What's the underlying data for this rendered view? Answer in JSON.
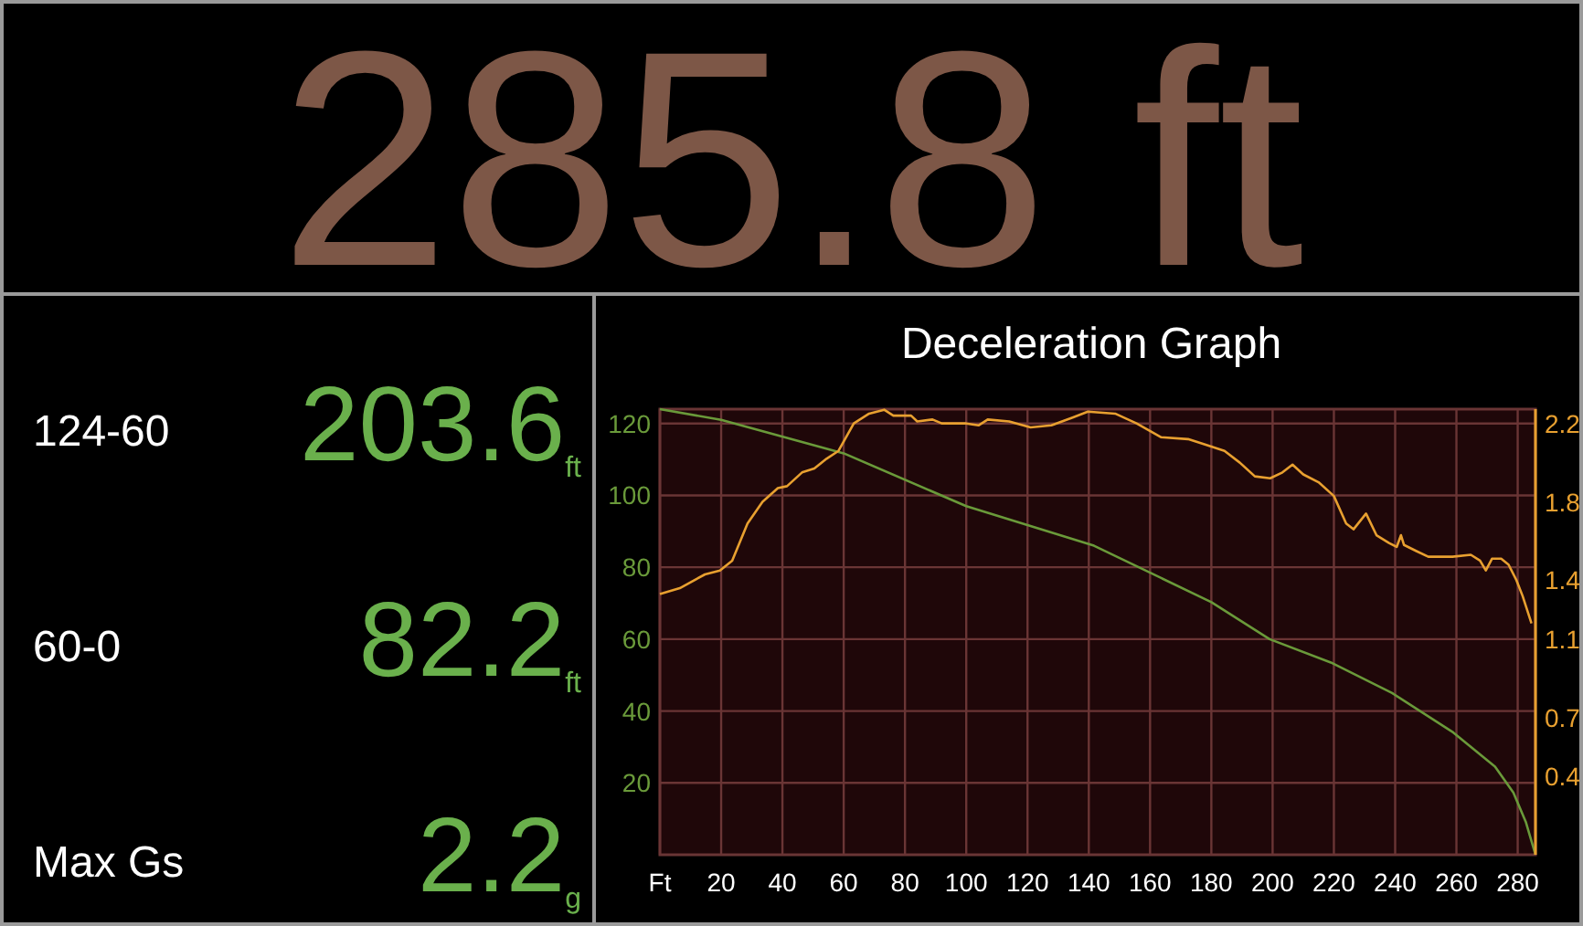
{
  "chart_data": [
    {
      "type": "other",
      "title": "285.8 ft",
      "color": "#7d5747"
    },
    {
      "type": "other",
      "annotations": [
        "124-60",
        "203.6$_{ft}$",
        "60-0",
        "82.2$_{ft}$",
        "Max Gs",
        "2.2$_{g}$"
      ],
      "color": "#6ab04c"
    },
    {
      "type": "line",
      "title": "Deceleration Graph",
      "xlim": [
        0,
        285.8
      ],
      "xticks": [
        {
          "value": 0,
          "label": "Ft"
        },
        20,
        40,
        60,
        80,
        100,
        120,
        140,
        160,
        180,
        200,
        220,
        240,
        260,
        280
      ],
      "ylim": [
        0,
        124
      ],
      "yticks": [
        20,
        40,
        60,
        80,
        100,
        120
      ],
      "y2lim": [
        0,
        2.273
      ],
      "y2ticks": [
        0.4,
        0.7,
        1.1,
        1.4,
        1.8,
        2.2
      ],
      "grid": true,
      "marker": "none",
      "line_style": "solid",
      "series": [
        {
          "color": "#6a9a3a",
          "x": [
            0,
            20,
            60,
            100,
            141.7,
            180,
            199,
            219,
            239,
            259,
            272.6,
            278.6,
            282.7,
            285.8
          ],
          "values": [
            124,
            121,
            111.7,
            97,
            86,
            70.3,
            60,
            53.5,
            45,
            34,
            24.5,
            17.3,
            9,
            0
          ]
        },
        {
          "color": "#e8a030",
          "axis": "y2",
          "x": [
            0,
            6.5,
            14.7,
            19.6,
            23.6,
            28.6,
            33.5,
            38.5,
            41.5,
            46.4,
            50.4,
            54.4,
            58.3,
            63.3,
            68.3,
            73.2,
            76.2,
            82,
            84,
            89,
            92,
            100,
            104,
            107,
            114,
            121,
            127.8,
            134.7,
            139.7,
            148.6,
            155.6,
            163.5,
            172.4,
            178.4,
            184.3,
            189.3,
            194.2,
            199.2,
            203.2,
            206.5,
            210,
            215,
            220,
            224,
            226.4,
            230.5,
            233.9,
            238,
            240.5,
            241.9,
            242.9,
            246.8,
            250.8,
            258.7,
            264.7,
            267.7,
            269.6,
            271.6,
            274.6,
            277,
            279.6,
            281.6,
            284.5
          ],
          "values": [
            1.33,
            1.36,
            1.43,
            1.45,
            1.5,
            1.69,
            1.8,
            1.87,
            1.88,
            1.95,
            1.97,
            2.02,
            2.06,
            2.2,
            2.25,
            2.27,
            2.24,
            2.24,
            2.21,
            2.22,
            2.2,
            2.2,
            2.19,
            2.22,
            2.21,
            2.18,
            2.19,
            2.23,
            2.26,
            2.25,
            2.2,
            2.13,
            2.12,
            2.09,
            2.06,
            2.0,
            1.93,
            1.92,
            1.95,
            1.99,
            1.94,
            1.9,
            1.83,
            1.69,
            1.66,
            1.74,
            1.63,
            1.59,
            1.57,
            1.63,
            1.58,
            1.55,
            1.52,
            1.52,
            1.53,
            1.5,
            1.45,
            1.51,
            1.51,
            1.48,
            1.4,
            1.32,
            1.18
          ]
        }
      ]
    }
  ]
}
